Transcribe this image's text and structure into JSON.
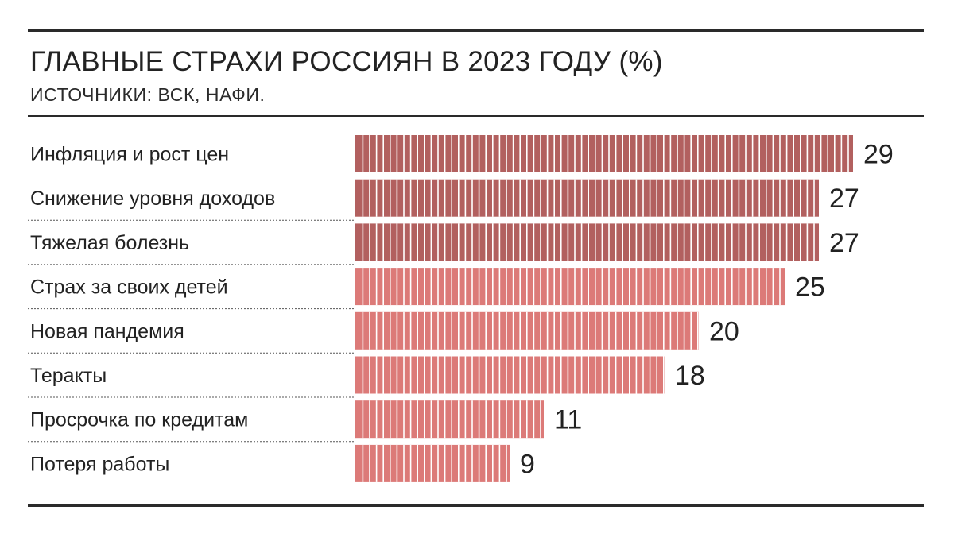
{
  "header": {
    "title": "ГЛАВНЫЕ СТРАХИ РОССИЯН В 2023 ГОДУ (%)",
    "source": "ИСТОЧНИКИ: ВСК, НАФИ."
  },
  "colors": {
    "bar_dark": "#b2605f",
    "bar_light": "#dc7a78",
    "stripe": "#ffffff",
    "text": "#222222",
    "rule": "#2a2a2a",
    "separator": "#555555"
  },
  "chart_data": {
    "type": "bar",
    "orientation": "horizontal",
    "title": "ГЛАВНЫЕ СТРАХИ РОССИЯН В 2023 ГОДУ (%)",
    "subtitle": "ИСТОЧНИКИ: ВСК, НАФИ.",
    "categories": [
      "Инфляция и рост цен",
      "Снижение уровня доходов",
      "Тяжелая болезнь",
      "Страх за своих детей",
      "Новая пандемия",
      "Теракты",
      "Просрочка по кредитам",
      "Потеря работы"
    ],
    "values": [
      29,
      27,
      27,
      25,
      20,
      18,
      11,
      9
    ],
    "bar_color_groups": [
      "dark",
      "dark",
      "dark",
      "light",
      "light",
      "light",
      "light",
      "light"
    ],
    "data_labels": true,
    "xlim": [
      0,
      29
    ],
    "grid": false,
    "legend": "none"
  }
}
